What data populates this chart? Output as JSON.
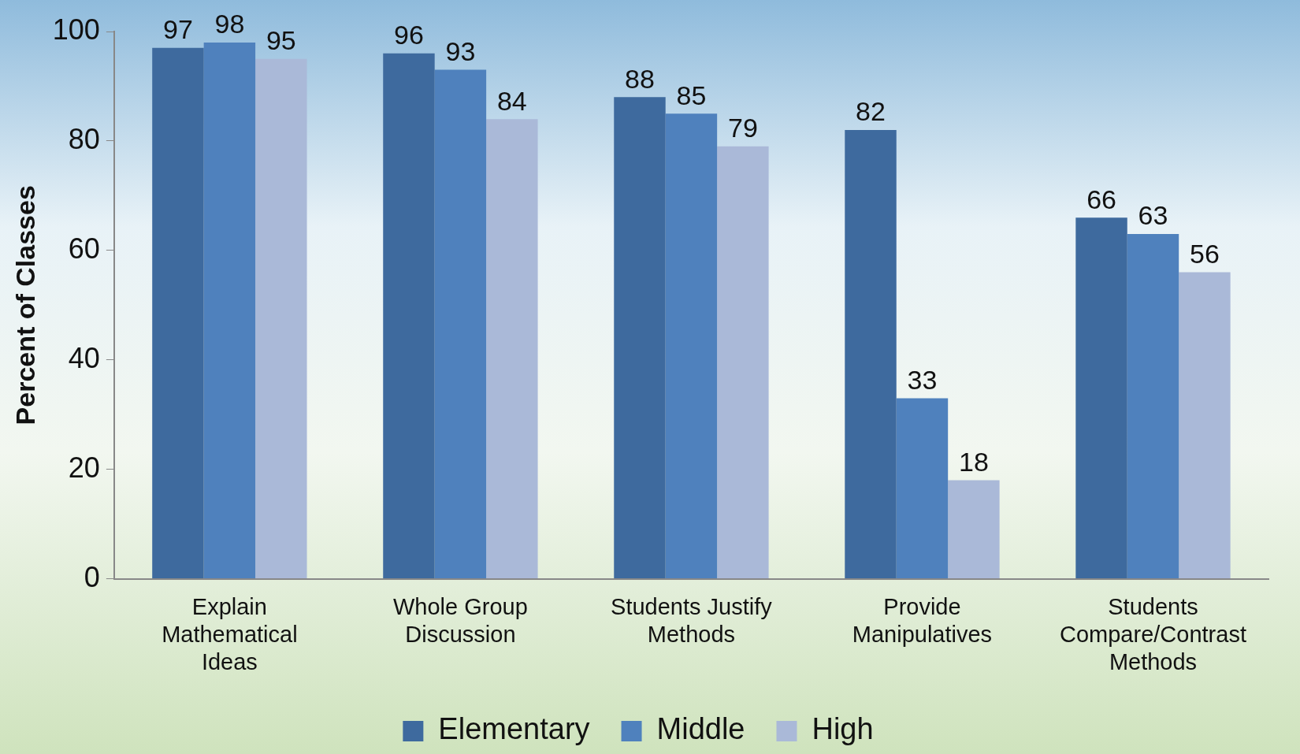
{
  "chart_data": {
    "type": "bar",
    "ylabel": "Percent of Classes",
    "categories": [
      "Explain Mathematical Ideas",
      "Whole Group Discussion",
      "Students Justify Methods",
      "Provide Manipulatives",
      "Students Compare/Contrast Methods"
    ],
    "series": [
      {
        "name": "Elementary",
        "color": "#3e6a9e",
        "values": [
          97,
          96,
          88,
          82,
          66
        ]
      },
      {
        "name": "Middle",
        "color": "#4f81bd",
        "values": [
          98,
          93,
          85,
          33,
          63
        ]
      },
      {
        "name": "High",
        "color": "#aab9d8",
        "values": [
          95,
          84,
          79,
          18,
          56
        ]
      }
    ],
    "ylim": [
      0,
      100
    ],
    "yticks": [
      0,
      20,
      40,
      60,
      80,
      100
    ],
    "grid": false,
    "legend": "bottom",
    "data_labels": true
  }
}
